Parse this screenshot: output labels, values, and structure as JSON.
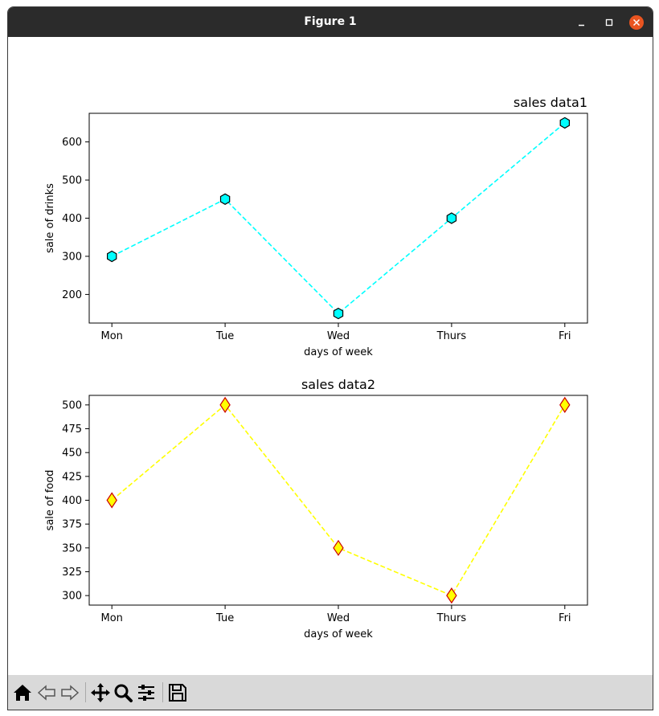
{
  "window": {
    "title": "Figure 1",
    "controls": [
      "minimize",
      "maximize",
      "close"
    ]
  },
  "toolbar": {
    "buttons": [
      "home-icon",
      "back-icon",
      "forward-icon",
      "pan-icon",
      "zoom-icon",
      "configure-icon",
      "save-icon"
    ]
  },
  "chart_data": [
    {
      "type": "line",
      "title": "sales data1",
      "title_loc": "right",
      "categories": [
        "Mon",
        "Tue",
        "Wed",
        "Thurs",
        "Fri"
      ],
      "values": [
        300,
        450,
        150,
        400,
        650
      ],
      "xlabel": "days of week",
      "ylabel": "sale of drinks",
      "ylim": [
        125,
        675
      ],
      "yticks": [
        200,
        300,
        400,
        500,
        600
      ],
      "line_color": "#00ffff",
      "line_style": "dashed",
      "marker": "hexagon",
      "marker_face": "#00ffff",
      "marker_edge": "#000000",
      "grid": false
    },
    {
      "type": "line",
      "title": "sales data2",
      "title_loc": "center",
      "categories": [
        "Mon",
        "Tue",
        "Wed",
        "Thurs",
        "Fri"
      ],
      "values": [
        400,
        500,
        350,
        300,
        500
      ],
      "xlabel": "days of week",
      "ylabel": "sale of food",
      "ylim": [
        290,
        510
      ],
      "yticks": [
        300,
        325,
        350,
        375,
        400,
        425,
        450,
        475,
        500
      ],
      "line_color": "#ffff00",
      "line_style": "dashed",
      "marker": "diamond",
      "marker_face": "#ffff00",
      "marker_edge": "#cc0000",
      "grid": false
    }
  ]
}
